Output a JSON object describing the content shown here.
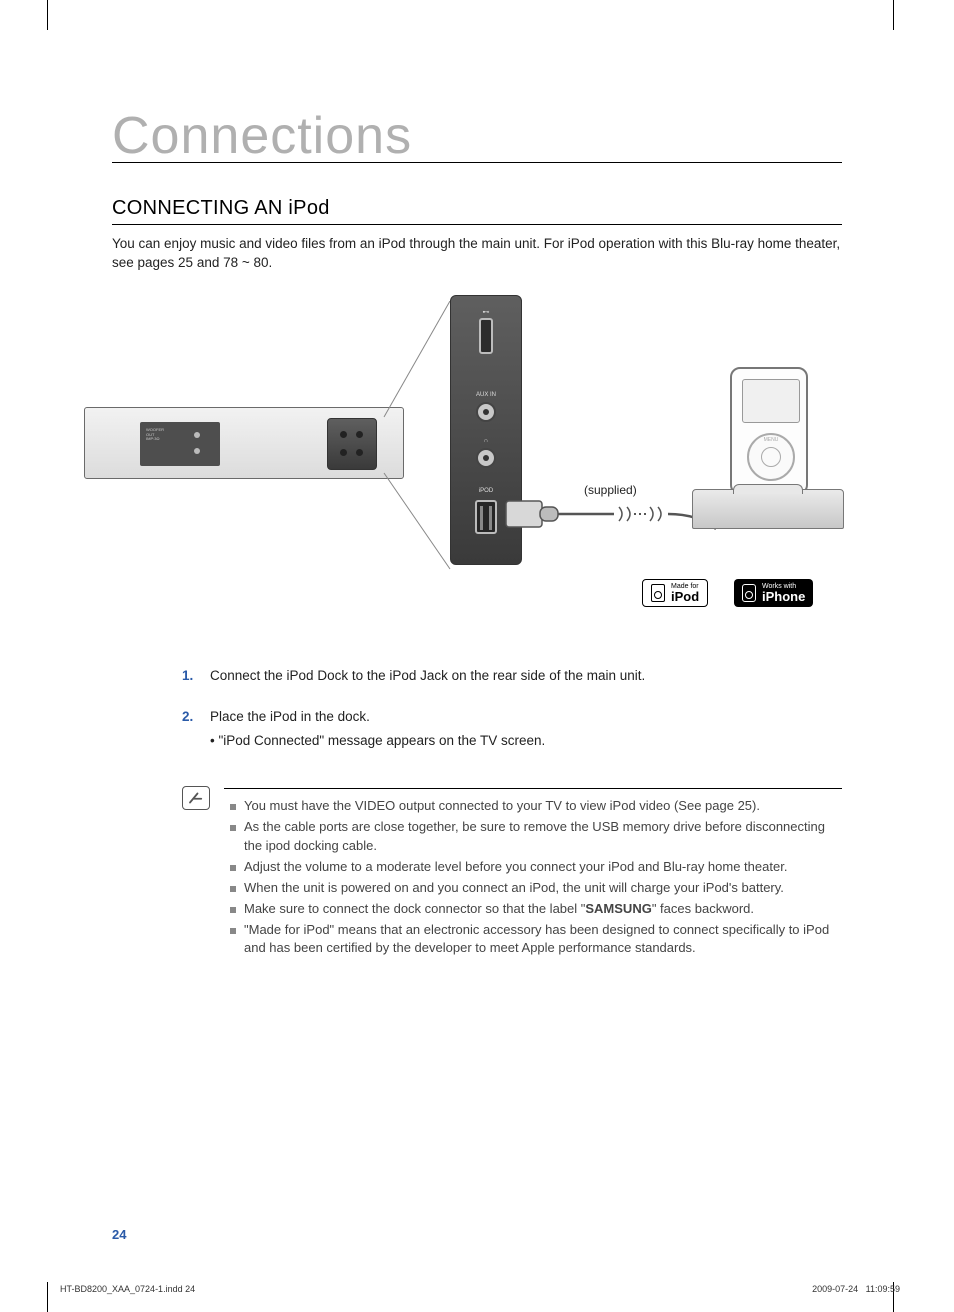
{
  "chapter_title": "Connections",
  "section_title": "CONNECTING AN iPod",
  "intro": "You can enjoy music and video files from an iPod through the main unit. For iPod operation with this Blu-ray home theater, see pages 25 and 78 ~ 80.",
  "diagram": {
    "supplied_label": "(supplied)",
    "panel_labels": {
      "aux": "AUX IN",
      "ipod": "iPOD"
    },
    "badges": {
      "ipod": {
        "small": "Made for",
        "big": "iPod"
      },
      "iphone": {
        "small": "Works with",
        "big": "iPhone"
      }
    },
    "colors": {
      "frame_border": "#6a6a6a",
      "panel_bg_top": "#5f5f5f",
      "panel_bg_bottom": "#3a3a3a",
      "badge_bg": "#000000",
      "badge_fg": "#ffffff"
    }
  },
  "steps": [
    {
      "num": "1.",
      "text": "Connect the iPod Dock to the iPod Jack on the rear side of the main unit."
    },
    {
      "num": "2.",
      "text": "Place the iPod in the dock.",
      "sub": "• \"iPod Connected\" message appears on the TV screen."
    }
  ],
  "notes": [
    "You must have the VIDEO output connected to your TV to view iPod video (See page 25).",
    "As the cable ports are close together, be sure to remove the USB memory drive before disconnecting the ipod docking cable.",
    "Adjust the volume to a moderate level before you connect your iPod and Blu-ray home theater.",
    "When the unit is powered on and you connect an iPod, the unit will charge your iPod's battery.",
    "Make sure to connect the dock connector so that the label \"<b>SAMSUNG</b>\" faces backword.",
    "\"Made for iPod\" means that an electronic accessory has been designed to connect specifically to iPod and has been certified by the developer to meet Apple performance standards."
  ],
  "page_number": "24",
  "footer": {
    "left": "HT-BD8200_XAA_0724-1.indd   24",
    "right_date": "2009-07-24",
    "right_time": "11:09:59"
  }
}
